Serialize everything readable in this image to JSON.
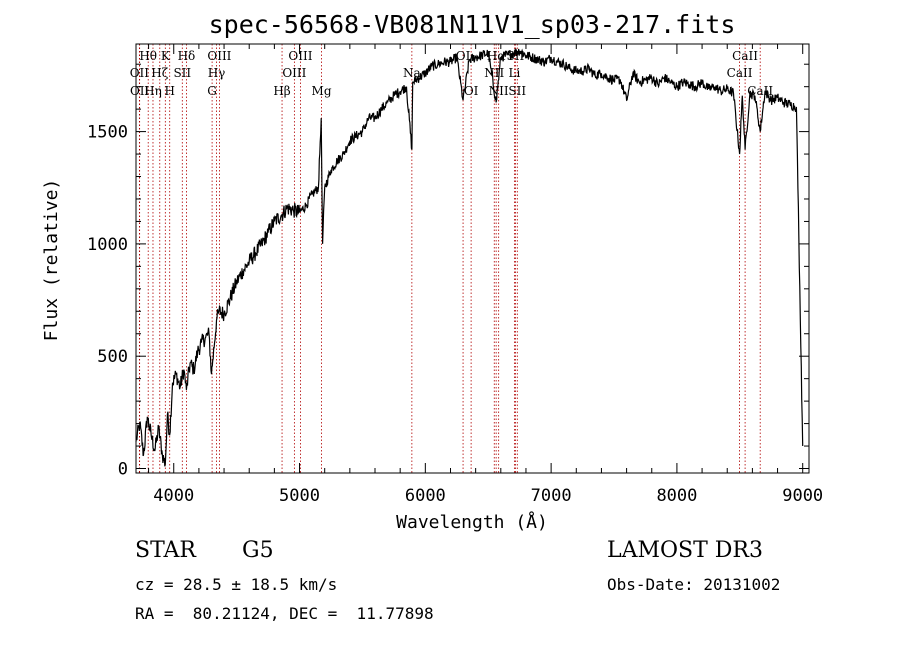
{
  "chart_data": {
    "type": "line",
    "title": "spec-56568-VB081N11V1_sp03-217.fits",
    "xlabel": "Wavelength (Å)",
    "ylabel": "Flux (relative)",
    "xlim": [
      3700,
      9050
    ],
    "ylim": [
      -20,
      1890
    ],
    "xticks": [
      4000,
      5000,
      6000,
      7000,
      8000,
      9000
    ],
    "yticks": [
      0,
      500,
      1000,
      1500
    ],
    "xtick_labels": [
      "4000",
      "5000",
      "6000",
      "7000",
      "8000",
      "9000"
    ],
    "ytick_labels": [
      "0",
      "500",
      "1000",
      "1500"
    ],
    "grid": false,
    "series": [
      {
        "name": "flux",
        "x": [
          3700,
          3730,
          3760,
          3790,
          3820,
          3850,
          3880,
          3910,
          3933,
          3950,
          3968,
          3990,
          4020,
          4050,
          4080,
          4101,
          4130,
          4160,
          4190,
          4220,
          4250,
          4280,
          4300,
          4310,
          4340,
          4360,
          4400,
          4450,
          4500,
          4550,
          4600,
          4650,
          4700,
          4750,
          4800,
          4861,
          4900,
          4950,
          5000,
          5050,
          5100,
          5150,
          5172,
          5183,
          5200,
          5250,
          5300,
          5350,
          5400,
          5450,
          5500,
          5550,
          5600,
          5650,
          5700,
          5750,
          5800,
          5850,
          5893,
          5900,
          5950,
          6000,
          6050,
          6100,
          6150,
          6200,
          6250,
          6300,
          6350,
          6400,
          6450,
          6500,
          6563,
          6600,
          6650,
          6700,
          6750,
          6800,
          6850,
          6900,
          6950,
          7000,
          7050,
          7100,
          7150,
          7200,
          7250,
          7300,
          7350,
          7400,
          7450,
          7500,
          7550,
          7600,
          7650,
          7700,
          7750,
          7800,
          7850,
          7900,
          7950,
          8000,
          8050,
          8100,
          8150,
          8200,
          8250,
          8300,
          8350,
          8400,
          8450,
          8498,
          8520,
          8542,
          8580,
          8620,
          8662,
          8700,
          8750,
          8800,
          8850,
          8900,
          8950,
          9000
        ],
        "values": [
          120,
          200,
          60,
          230,
          150,
          80,
          180,
          60,
          20,
          240,
          150,
          380,
          420,
          360,
          440,
          350,
          470,
          440,
          520,
          560,
          580,
          600,
          420,
          480,
          660,
          700,
          690,
          760,
          830,
          880,
          920,
          960,
          1000,
          1050,
          1100,
          1130,
          1160,
          1150,
          1140,
          1170,
          1220,
          1250,
          1560,
          1000,
          1250,
          1330,
          1370,
          1400,
          1460,
          1480,
          1500,
          1560,
          1560,
          1600,
          1630,
          1660,
          1680,
          1700,
          1420,
          1720,
          1740,
          1760,
          1790,
          1800,
          1810,
          1810,
          1830,
          1640,
          1820,
          1830,
          1840,
          1850,
          1630,
          1830,
          1840,
          1850,
          1860,
          1840,
          1830,
          1820,
          1810,
          1830,
          1810,
          1800,
          1780,
          1770,
          1770,
          1780,
          1750,
          1760,
          1740,
          1730,
          1730,
          1640,
          1760,
          1720,
          1730,
          1740,
          1710,
          1740,
          1720,
          1700,
          1720,
          1710,
          1700,
          1720,
          1690,
          1700,
          1680,
          1690,
          1670,
          1400,
          1660,
          1420,
          1670,
          1660,
          1500,
          1680,
          1640,
          1650,
          1630,
          1620,
          1610,
          100
        ]
      }
    ],
    "spectral_lines": [
      {
        "label": "Hβ",
        "x": 4861,
        "row": 3
      },
      {
        "label": "OIII",
        "x": 4959,
        "row": 2
      },
      {
        "label": "OIII",
        "x": 5007,
        "row": 1
      },
      {
        "label": "Mg",
        "x": 5175,
        "row": 3
      },
      {
        "label": "Na",
        "x": 5893,
        "row": 2
      },
      {
        "label": "OI",
        "x": 6300,
        "row": 1
      },
      {
        "label": "OI",
        "x": 6364,
        "row": 3
      },
      {
        "label": "NII",
        "x": 6548,
        "row": 2
      },
      {
        "label": "Hα",
        "x": 6563,
        "row": 1
      },
      {
        "label": "NII",
        "x": 6583,
        "row": 3
      },
      {
        "label": "SII",
        "x": 6716,
        "row": 1
      },
      {
        "label": "Li",
        "x": 6708,
        "row": 2
      },
      {
        "label": "SII",
        "x": 6731,
        "row": 3
      },
      {
        "label": "CaII",
        "x": 8498,
        "row": 2
      },
      {
        "label": "CaII",
        "x": 8542,
        "row": 1
      },
      {
        "label": "CaII",
        "x": 8662,
        "row": 3
      },
      {
        "label": "Hθ",
        "x": 3797,
        "row": 1
      },
      {
        "label": "OII",
        "x": 3727,
        "row": 2
      },
      {
        "label": "OII",
        "x": 3729,
        "row": 3
      },
      {
        "label": "Hη",
        "x": 3835,
        "row": 3
      },
      {
        "label": "Hζ",
        "x": 3889,
        "row": 2
      },
      {
        "label": "K",
        "x": 3933,
        "row": 1
      },
      {
        "label": "H",
        "x": 3968,
        "row": 3
      },
      {
        "label": "SII",
        "x": 4068,
        "row": 2
      },
      {
        "label": "Hδ",
        "x": 4101,
        "row": 1
      },
      {
        "label": "OIII",
        "x": 4363,
        "row": 1
      },
      {
        "label": "Hγ",
        "x": 4340,
        "row": 2
      },
      {
        "label": "G",
        "x": 4305,
        "row": 3
      }
    ]
  },
  "info": {
    "object_class": "STAR",
    "subclass": "G5",
    "survey": "LAMOST DR3",
    "redshift_line": "cz = 28.5 ± 18.5 km/s",
    "obs_date_line": "Obs-Date: 20131002",
    "coords_line": "RA =  80.21124, DEC =  11.77898"
  }
}
